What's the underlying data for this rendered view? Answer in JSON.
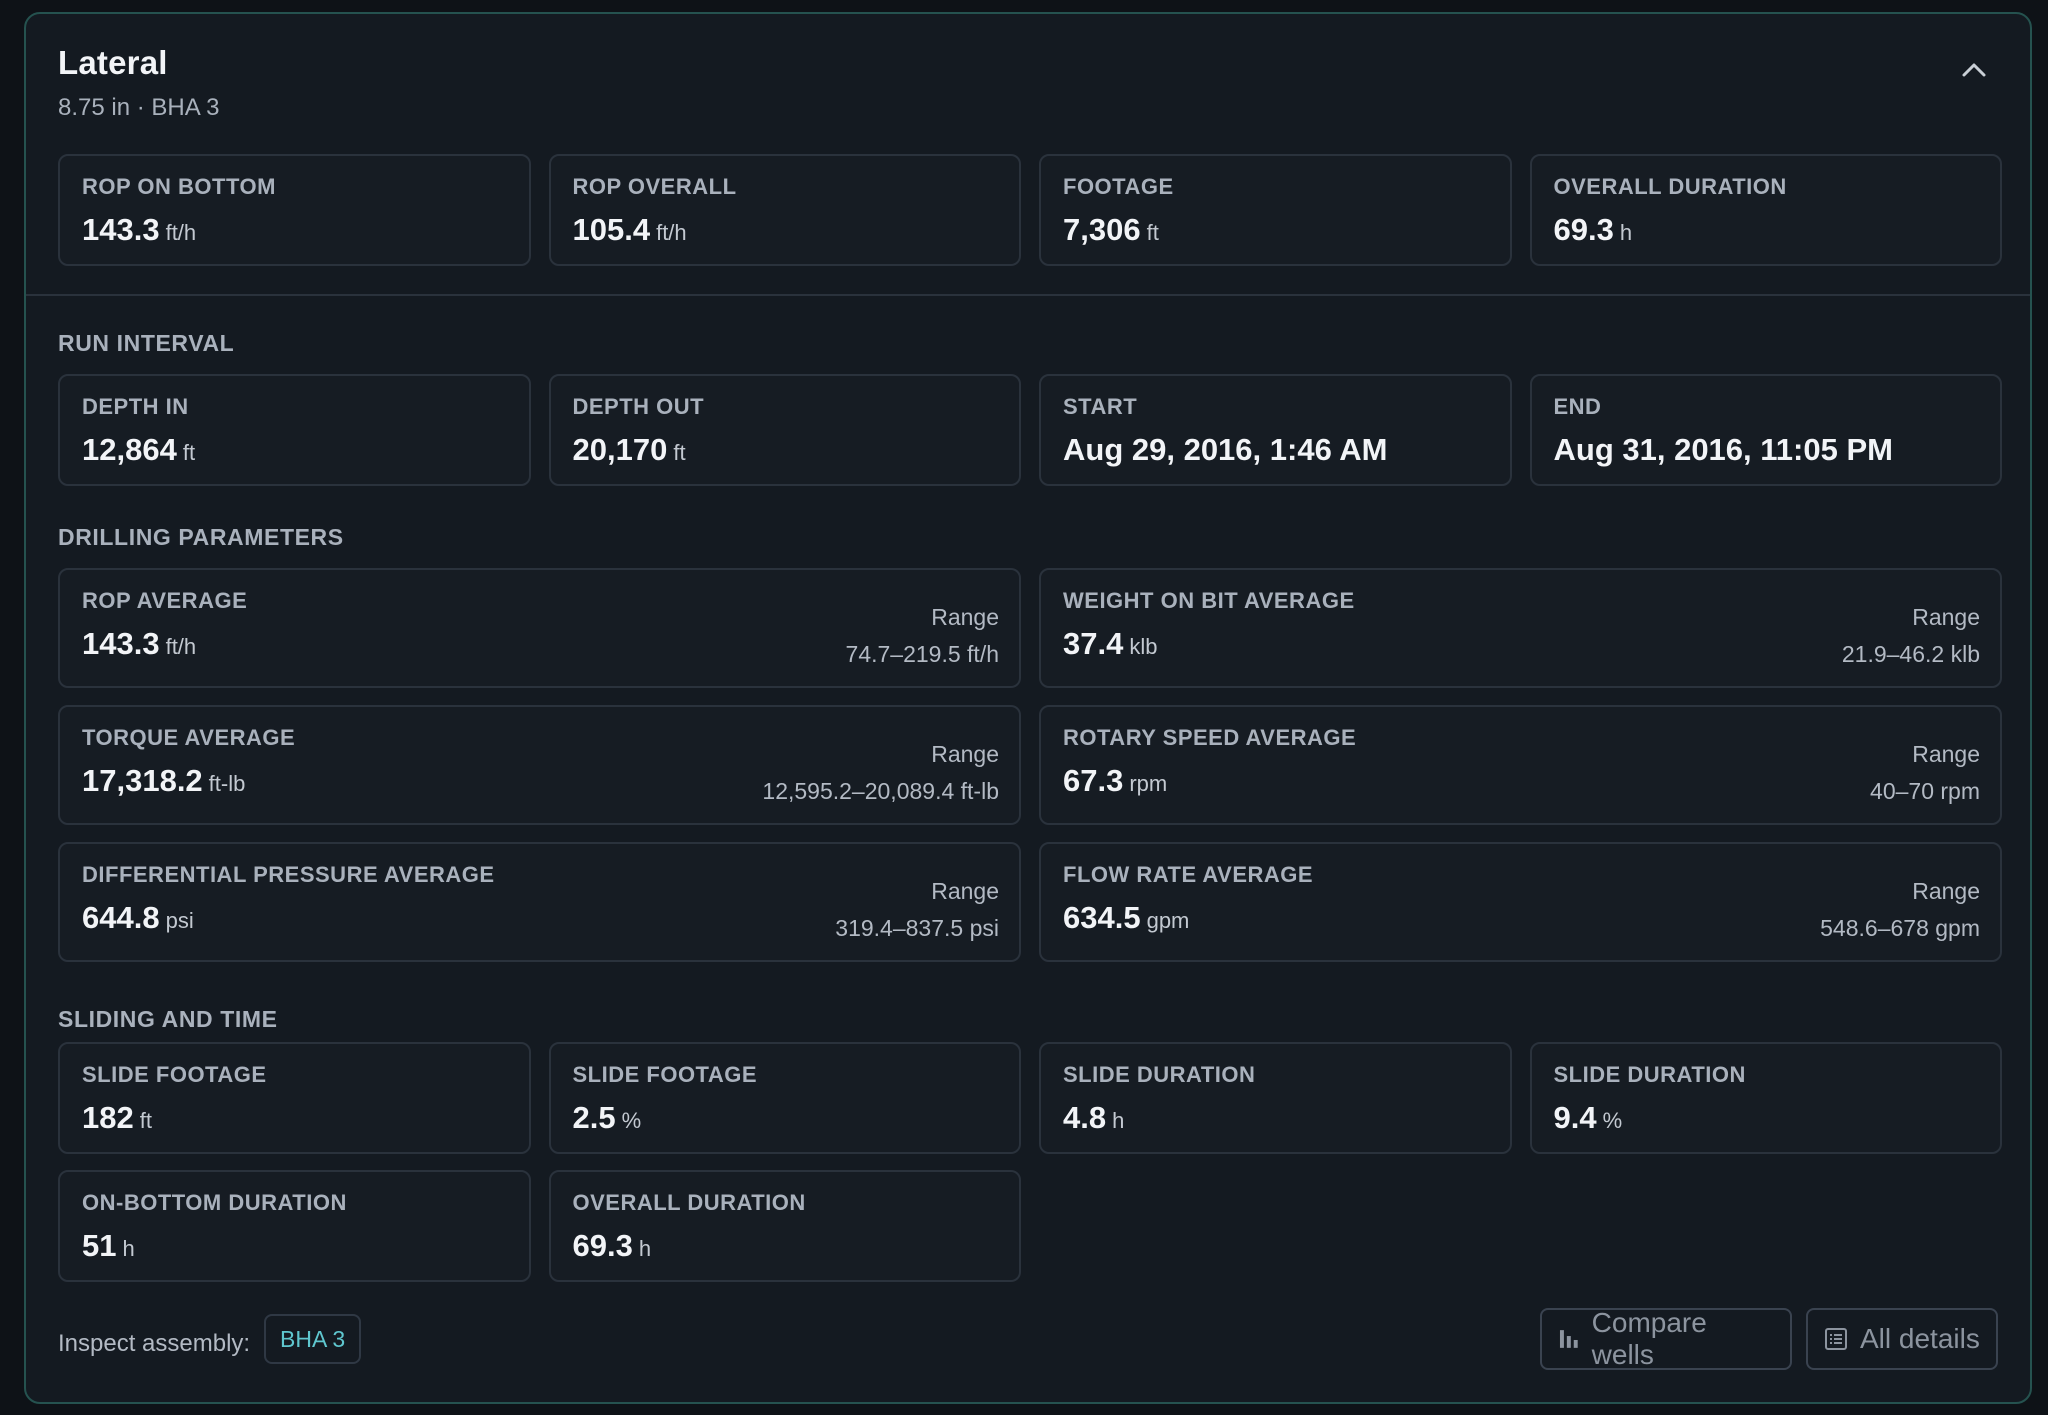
{
  "header": {
    "title": "Lateral",
    "subtitle": "8.75 in · BHA 3"
  },
  "summary": [
    {
      "label": "ROP ON BOTTOM",
      "value": "143.3",
      "unit": "ft/h"
    },
    {
      "label": "ROP OVERALL",
      "value": "105.4",
      "unit": "ft/h"
    },
    {
      "label": "FOOTAGE",
      "value": "7,306",
      "unit": "ft"
    },
    {
      "label": "OVERALL DURATION",
      "value": "69.3",
      "unit": "h"
    }
  ],
  "run_interval": {
    "title": "RUN INTERVAL",
    "items": [
      {
        "label": "DEPTH IN",
        "value": "12,864",
        "unit": "ft"
      },
      {
        "label": "DEPTH OUT",
        "value": "20,170",
        "unit": "ft"
      },
      {
        "label": "START",
        "value": "Aug 29, 2016, 1:46 AM",
        "unit": ""
      },
      {
        "label": "END",
        "value": "Aug 31, 2016, 11:05 PM",
        "unit": ""
      }
    ]
  },
  "drilling_parameters": {
    "title": "DRILLING PARAMETERS",
    "range_label": "Range",
    "items": [
      {
        "label": "ROP AVERAGE",
        "value": "143.3",
        "unit": "ft/h",
        "range": "74.7–219.5 ft/h"
      },
      {
        "label": "WEIGHT ON BIT AVERAGE",
        "value": "37.4",
        "unit": "klb",
        "range": "21.9–46.2 klb"
      },
      {
        "label": "TORQUE AVERAGE",
        "value": "17,318.2",
        "unit": "ft-lb",
        "range": "12,595.2–20,089.4 ft-lb"
      },
      {
        "label": "ROTARY SPEED AVERAGE",
        "value": "67.3",
        "unit": "rpm",
        "range": "40–70 rpm"
      },
      {
        "label": "DIFFERENTIAL PRESSURE AVERAGE",
        "value": "644.8",
        "unit": "psi",
        "range": "319.4–837.5 psi"
      },
      {
        "label": "FLOW RATE AVERAGE",
        "value": "634.5",
        "unit": "gpm",
        "range": "548.6–678 gpm"
      }
    ]
  },
  "sliding_and_time": {
    "title": "SLIDING AND TIME",
    "items": [
      {
        "label": "SLIDE FOOTAGE",
        "value": "182",
        "unit": "ft"
      },
      {
        "label": "SLIDE FOOTAGE",
        "value": "2.5",
        "unit": "%"
      },
      {
        "label": "SLIDE DURATION",
        "value": "4.8",
        "unit": "h"
      },
      {
        "label": "SLIDE DURATION",
        "value": "9.4",
        "unit": "%"
      },
      {
        "label": "ON-BOTTOM DURATION",
        "value": "51",
        "unit": "h"
      },
      {
        "label": "OVERALL DURATION",
        "value": "69.3",
        "unit": "h"
      }
    ]
  },
  "footer": {
    "inspect_label": "Inspect assembly:",
    "assembly_chip": "BHA 3",
    "compare_label": "Compare wells",
    "details_label": "All details"
  },
  "icons": {
    "collapse": "chevron-up-icon",
    "compare": "bar-chart-icon",
    "details": "list-icon"
  },
  "colors": {
    "accent": "#5fc7cf",
    "border_accent": "#25524f"
  }
}
